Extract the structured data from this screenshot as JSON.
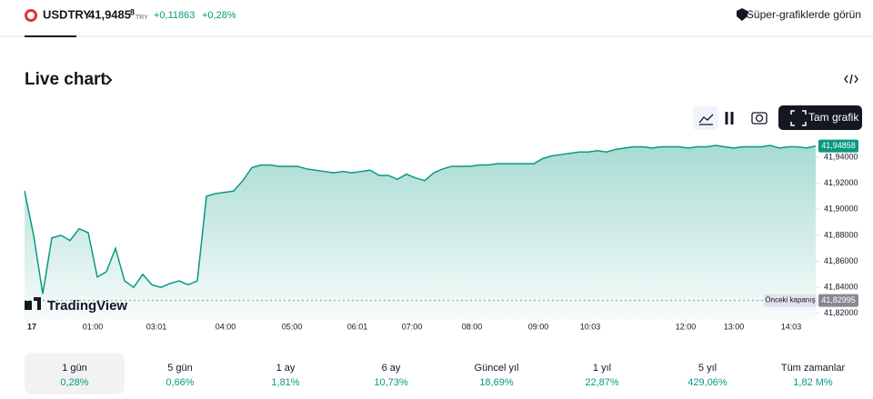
{
  "header": {
    "symbol": "USDTRY",
    "price": "41,9485",
    "price_small": "8",
    "currency": "TRY",
    "change": "+0,11863",
    "change_pct": "+0,28%",
    "promo": "Süper-grafiklerde görün"
  },
  "section_title": "Live chart",
  "button": "Tam grafik",
  "watermark": "TradingView",
  "chart_data": {
    "type": "line",
    "color": "#089981",
    "values": [
      41.914,
      41.88,
      41.835,
      41.878,
      41.88,
      41.876,
      41.885,
      41.882,
      41.848,
      41.852,
      41.87,
      41.845,
      41.84,
      41.85,
      41.842,
      41.84,
      41.843,
      41.845,
      41.842,
      41.845,
      41.91,
      41.912,
      41.913,
      41.914,
      41.922,
      41.932,
      41.934,
      41.934,
      41.933,
      41.933,
      41.933,
      41.931,
      41.93,
      41.929,
      41.928,
      41.929,
      41.928,
      41.929,
      41.93,
      41.926,
      41.926,
      41.923,
      41.927,
      41.924,
      41.922,
      41.928,
      41.931,
      41.933,
      41.933,
      41.933,
      41.934,
      41.934,
      41.935,
      41.935,
      41.935,
      41.935,
      41.935,
      41.939,
      41.941,
      41.942,
      41.943,
      41.944,
      41.944,
      41.945,
      41.944,
      41.946,
      41.947,
      41.948,
      41.948,
      41.947,
      41.948,
      41.948,
      41.948,
      41.947,
      41.948,
      41.948,
      41.949,
      41.948,
      41.947,
      41.948,
      41.948,
      41.948,
      41.949,
      41.947,
      41.948,
      41.948,
      41.947,
      41.94858
    ],
    "xticks": [
      {
        "value": 0.3,
        "label": "17"
      },
      {
        "value": 7.5,
        "label": "01:00"
      },
      {
        "value": 14.5,
        "label": "03:01"
      },
      {
        "value": 22.1,
        "label": "04:00"
      },
      {
        "value": 29.4,
        "label": "05:00"
      },
      {
        "value": 36.6,
        "label": "06:01"
      },
      {
        "value": 42.6,
        "label": "07:00"
      },
      {
        "value": 49.2,
        "label": "08:00"
      },
      {
        "value": 56.5,
        "label": "09:00"
      },
      {
        "value": 62.2,
        "label": "10:03"
      },
      {
        "value": 72.7,
        "label": "12:00"
      },
      {
        "value": 78,
        "label": "13:00"
      },
      {
        "value": 84.3,
        "label": "14:03"
      }
    ],
    "ylim": [
      41.815,
      41.956
    ],
    "yticks": [
      {
        "value": 41.82,
        "label": "41,82000"
      },
      {
        "value": 41.84,
        "label": "41,84000"
      },
      {
        "value": 41.86,
        "label": "41,86000"
      },
      {
        "value": 41.88,
        "label": "41,88000"
      },
      {
        "value": 41.9,
        "label": "41,90000"
      },
      {
        "value": 41.92,
        "label": "41,92000"
      },
      {
        "value": 41.94,
        "label": "41,94000"
      }
    ],
    "last_label": "41,94858",
    "reference_line": {
      "value": 41.82995,
      "label": "Önceki kapanış",
      "value_label": "41,82995"
    }
  },
  "periods": [
    {
      "label": "1 gün",
      "value": "0,28%"
    },
    {
      "label": "5 gün",
      "value": "0,66%"
    },
    {
      "label": "1 ay",
      "value": "1,81%"
    },
    {
      "label": "6 ay",
      "value": "10,73%"
    },
    {
      "label": "Güncel yıl",
      "value": "18,69%"
    },
    {
      "label": "1 yıl",
      "value": "22,87%"
    },
    {
      "label": "5 yıl",
      "value": "429,06%"
    },
    {
      "label": "Tüm zamanlar",
      "value": "1,82 M%"
    }
  ]
}
